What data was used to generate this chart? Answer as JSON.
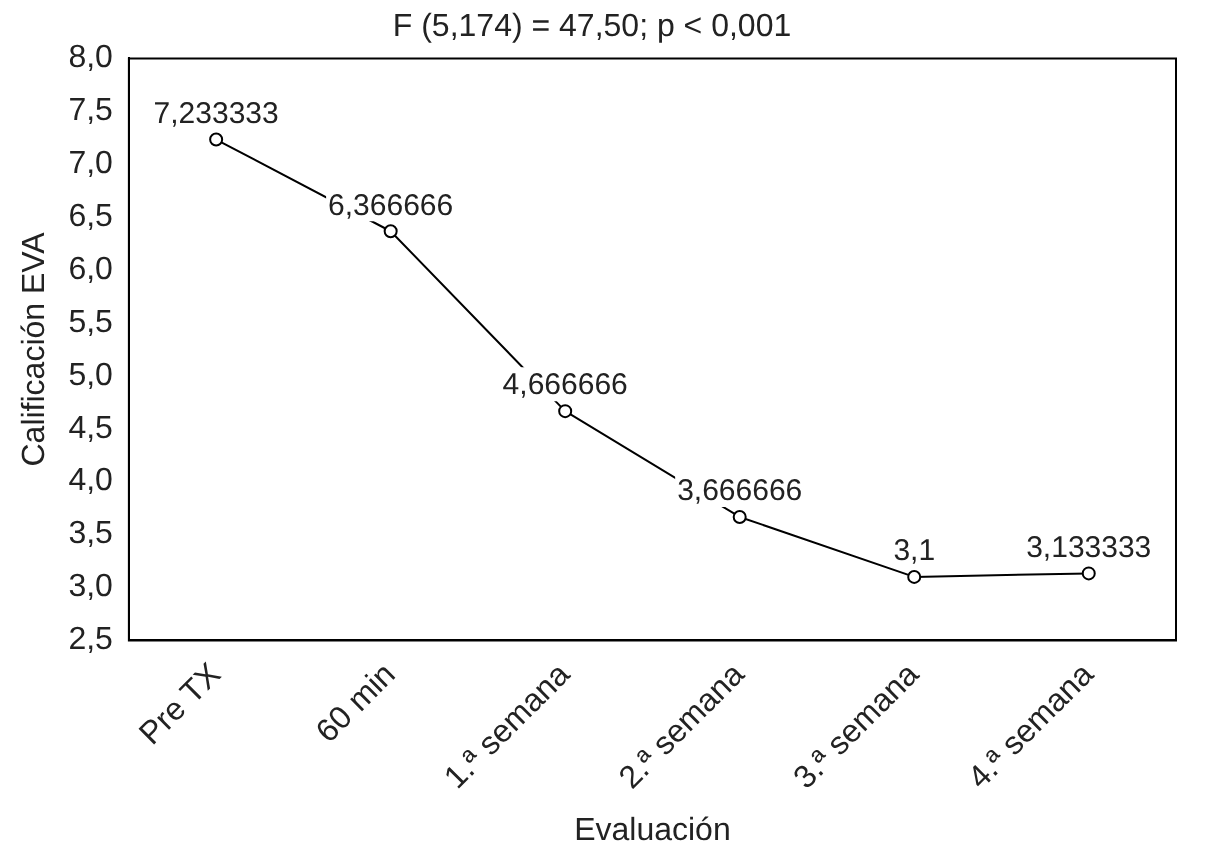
{
  "chart_data": {
    "type": "line",
    "title": "F (5,174) = 47,50; p < 0,001",
    "xlabel": "Evaluación",
    "ylabel": "Calificación EVA",
    "categories": [
      "Pre TX",
      "60 min",
      "1.ª semana",
      "2.ª semana",
      "3.ª semana",
      "4.ª semana"
    ],
    "series": [
      {
        "color": "#000000",
        "values": [
          7.233333,
          6.366666,
          4.666666,
          3.666666,
          3.1,
          3.133333
        ],
        "value_labels": [
          "7,233333",
          "6,366666",
          "4,666666",
          "3,666666",
          "3,1",
          "3,133333"
        ]
      }
    ],
    "ylim": [
      2.5,
      8.0
    ],
    "yticks": [
      {
        "value": 2.5,
        "label": "2,5"
      },
      {
        "value": 3,
        "label": "3,0"
      },
      {
        "value": 3.5,
        "label": "3,5"
      },
      {
        "value": 4,
        "label": "4,0"
      },
      {
        "value": 4.5,
        "label": "4,5"
      },
      {
        "value": 5,
        "label": "5,0"
      },
      {
        "value": 5.5,
        "label": "5,5"
      },
      {
        "value": 6,
        "label": "6,0"
      },
      {
        "value": 6.5,
        "label": "6,5"
      },
      {
        "value": 7,
        "label": "7,0"
      },
      {
        "value": 7.5,
        "label": "7,5"
      },
      {
        "value": 8,
        "label": "8,0"
      }
    ],
    "grid": false,
    "legend": false,
    "marker": "circle",
    "line_style": "solid"
  }
}
